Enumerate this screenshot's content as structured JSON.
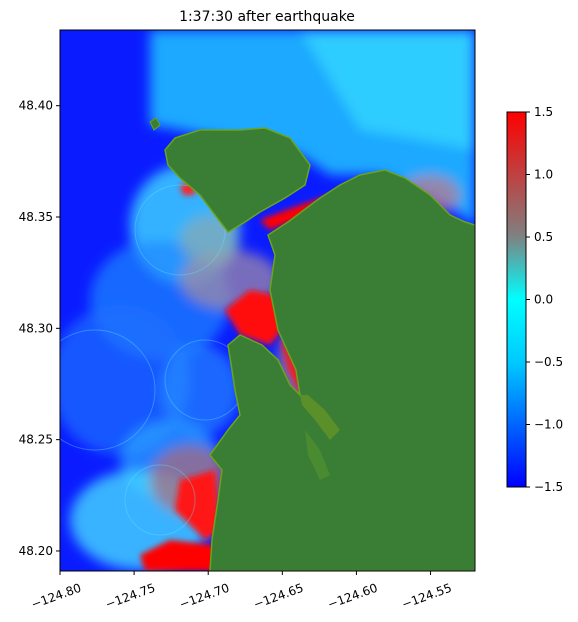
{
  "chart_data": {
    "type": "heatmap",
    "title": "1:37:30 after earthquake",
    "xlabel": "",
    "ylabel": "",
    "xlim": [
      -124.8,
      -124.52
    ],
    "ylim": [
      48.191,
      48.434
    ],
    "x_ticks": [
      -124.8,
      -124.75,
      -124.7,
      -124.65,
      -124.6,
      -124.55
    ],
    "x_tick_labels": [
      "−124.80",
      "−124.75",
      "−124.70",
      "−124.65",
      "−124.60",
      "−124.55"
    ],
    "y_ticks": [
      48.2,
      48.25,
      48.3,
      48.35,
      48.4
    ],
    "y_tick_labels": [
      "48.20",
      "48.25",
      "48.30",
      "48.35",
      "48.40"
    ],
    "colorbar": {
      "range": [
        -1.5,
        1.5
      ],
      "ticks": [
        -1.5,
        -1.0,
        -0.5,
        0.0,
        0.5,
        1.0,
        1.5
      ],
      "tick_labels": [
        "−1.5",
        "−1.0",
        "−0.5",
        "0.0",
        "0.5",
        "1.0",
        "1.5"
      ],
      "colormap": [
        "#0000ff",
        "#00ffff",
        "#808080",
        "#ff0000"
      ]
    },
    "grid": false,
    "land_color": "#3a7d35",
    "coast_color": "#6aa41c"
  }
}
